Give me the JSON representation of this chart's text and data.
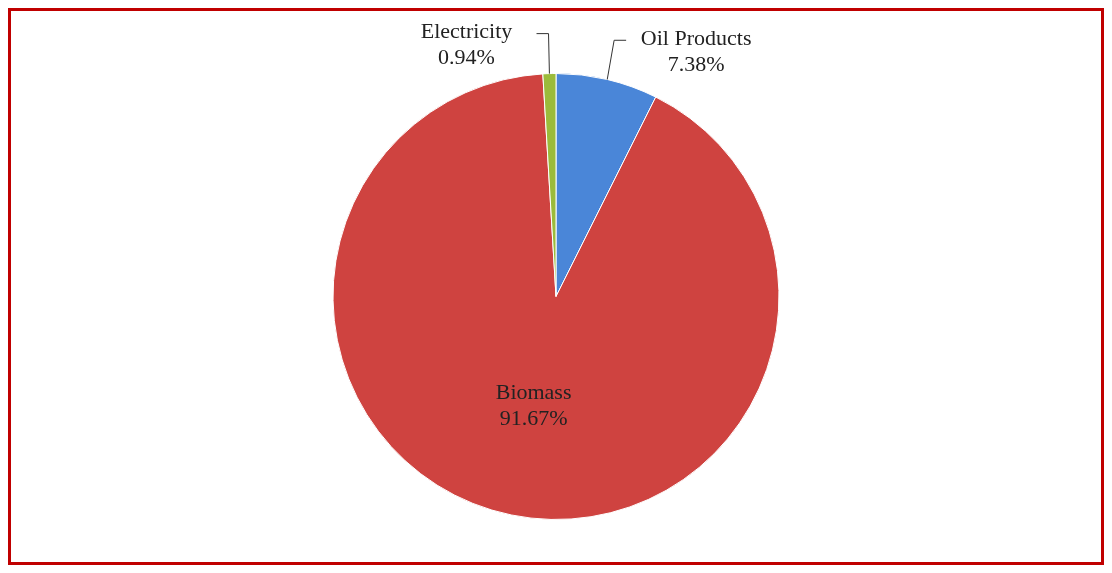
{
  "chart_data": {
    "type": "pie",
    "categories": [
      "Oil Products",
      "Biomass",
      "Electricity"
    ],
    "values": [
      7.38,
      91.67,
      0.94
    ],
    "colors": [
      "#4a86d8",
      "#cf4340",
      "#9bbb3b"
    ],
    "value_labels": [
      "7.38%",
      "91.67%",
      "0.94%"
    ],
    "legend": false
  }
}
